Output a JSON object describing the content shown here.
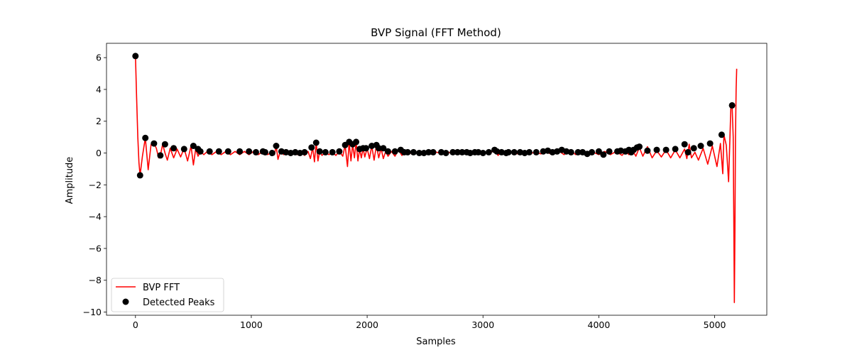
{
  "chart_data": {
    "type": "line",
    "title": "BVP Signal (FFT Method)",
    "xlabel": "Samples",
    "ylabel": "Amplitude",
    "xlim": [
      -250,
      5450
    ],
    "ylim": [
      -10.2,
      6.9
    ],
    "xticks": [
      0,
      1000,
      2000,
      3000,
      4000,
      5000
    ],
    "yticks": [
      -10,
      -8,
      -6,
      -4,
      -2,
      0,
      2,
      4,
      6
    ],
    "grid": false,
    "legend_position": "lower-left",
    "series": [
      {
        "name": "BVP FFT",
        "kind": "line",
        "color": "#ff0000",
        "x": [
          0,
          10,
          20,
          30,
          40,
          60,
          85,
          110,
          135,
          160,
          180,
          200,
          215,
          235,
          255,
          275,
          300,
          330,
          360,
          390,
          420,
          450,
          480,
          500,
          520,
          540,
          560,
          590,
          620,
          660,
          700,
          740,
          780,
          820,
          860,
          900,
          940,
          980,
          1020,
          1060,
          1100,
          1140,
          1180,
          1200,
          1215,
          1230,
          1250,
          1280,
          1310,
          1340,
          1370,
          1400,
          1430,
          1460,
          1490,
          1510,
          1530,
          1545,
          1560,
          1575,
          1590,
          1610,
          1640,
          1670,
          1700,
          1730,
          1760,
          1790,
          1810,
          1830,
          1845,
          1860,
          1875,
          1890,
          1905,
          1920,
          1935,
          1950,
          1965,
          1980,
          2000,
          2020,
          2040,
          2060,
          2080,
          2100,
          2120,
          2140,
          2160,
          2180,
          2210,
          2240,
          2270,
          2300,
          2330,
          2360,
          2400,
          2450,
          2500,
          2550,
          2600,
          2650,
          2700,
          2750,
          2800,
          2850,
          2900,
          2950,
          3000,
          3050,
          3100,
          3130,
          3160,
          3200,
          3250,
          3300,
          3350,
          3400,
          3450,
          3500,
          3550,
          3600,
          3650,
          3700,
          3750,
          3800,
          3850,
          3900,
          3950,
          4000,
          4050,
          4100,
          4150,
          4200,
          4230,
          4260,
          4290,
          4320,
          4350,
          4380,
          4420,
          4460,
          4500,
          4540,
          4580,
          4620,
          4660,
          4700,
          4740,
          4760,
          4780,
          4800,
          4830,
          4860,
          4900,
          4940,
          4980,
          5020,
          5050,
          5070,
          5080,
          5100,
          5120,
          5140,
          5150,
          5160,
          5165,
          5170,
          5175,
          5180,
          5185,
          5190
        ],
        "y": [
          6.1,
          3.5,
          1.0,
          -0.6,
          -1.4,
          -0.2,
          0.95,
          -1.05,
          0.55,
          0.6,
          0.3,
          -0.3,
          -0.15,
          0.55,
          0.0,
          -0.45,
          0.3,
          -0.3,
          0.25,
          -0.25,
          0.3,
          -0.5,
          0.45,
          -0.75,
          0.25,
          -0.2,
          0.1,
          -0.1,
          0.1,
          -0.1,
          0.1,
          -0.1,
          0.1,
          -0.1,
          0.1,
          -0.1,
          0.1,
          -0.1,
          0.1,
          -0.1,
          0.1,
          -0.1,
          0.05,
          -0.1,
          0.45,
          -0.4,
          0.1,
          -0.1,
          0.05,
          -0.1,
          0.05,
          -0.1,
          0.05,
          -0.15,
          0.1,
          -0.35,
          0.35,
          -0.55,
          0.65,
          -0.5,
          0.1,
          -0.15,
          0.05,
          -0.1,
          0.05,
          -0.15,
          0.1,
          -0.2,
          0.5,
          -0.85,
          0.7,
          -0.5,
          0.55,
          -0.3,
          0.7,
          -0.5,
          0.25,
          -0.3,
          0.3,
          -0.25,
          0.3,
          -0.35,
          0.45,
          -0.45,
          0.5,
          -0.3,
          0.3,
          -0.35,
          0.1,
          -0.2,
          0.1,
          -0.2,
          0.2,
          -0.15,
          0.05,
          -0.05,
          0.05,
          -0.05,
          0.05,
          -0.05,
          0.05,
          -0.05,
          0.05,
          -0.05,
          0.05,
          -0.05,
          0.05,
          -0.05,
          0.05,
          -0.05,
          0.2,
          -0.15,
          0.1,
          -0.05,
          0.05,
          -0.05,
          0.05,
          -0.05,
          0.05,
          -0.05,
          0.05,
          -0.1,
          0.15,
          -0.1,
          0.2,
          -0.1,
          0.1,
          -0.05,
          0.05,
          -0.1,
          0.1,
          -0.1,
          0.1,
          -0.15,
          0.1,
          -0.1,
          0.2,
          -0.2,
          0.35,
          -0.2,
          0.4,
          -0.3,
          0.15,
          -0.25,
          0.2,
          -0.3,
          0.2,
          -0.3,
          0.25,
          -0.35,
          0.55,
          -0.3,
          0.05,
          -0.45,
          0.3,
          -0.7,
          0.45,
          -0.85,
          0.6,
          -1.3,
          1.15,
          0.5,
          -1.8,
          2.9,
          3.0,
          1.0,
          -4.0,
          -9.4,
          -5.0,
          1.0,
          4.0,
          5.3
        ]
      },
      {
        "name": "Detected Peaks",
        "kind": "scatter",
        "color": "#000000",
        "x": [
          0,
          40,
          85,
          160,
          215,
          255,
          330,
          420,
          500,
          540,
          560,
          640,
          720,
          800,
          900,
          980,
          1040,
          1100,
          1120,
          1180,
          1215,
          1260,
          1300,
          1340,
          1380,
          1420,
          1460,
          1520,
          1560,
          1590,
          1640,
          1700,
          1760,
          1810,
          1845,
          1875,
          1905,
          1935,
          1965,
          1990,
          2040,
          2080,
          2100,
          2140,
          2180,
          2240,
          2290,
          2320,
          2350,
          2400,
          2450,
          2490,
          2530,
          2570,
          2640,
          2680,
          2740,
          2780,
          2820,
          2860,
          2890,
          2930,
          2960,
          3000,
          3050,
          3100,
          3120,
          3160,
          3200,
          3220,
          3270,
          3320,
          3360,
          3400,
          3460,
          3520,
          3560,
          3600,
          3640,
          3680,
          3720,
          3760,
          3820,
          3860,
          3900,
          3940,
          4000,
          4040,
          4090,
          4160,
          4190,
          4230,
          4260,
          4280,
          4300,
          4330,
          4350,
          4420,
          4500,
          4580,
          4660,
          4740,
          4770,
          4820,
          4880,
          4960,
          5060,
          5150
        ],
        "y": [
          6.1,
          -1.4,
          0.95,
          0.6,
          -0.15,
          0.55,
          0.3,
          0.25,
          0.45,
          0.25,
          0.1,
          0.1,
          0.1,
          0.1,
          0.1,
          0.1,
          0.05,
          0.1,
          0.05,
          0.0,
          0.45,
          0.1,
          0.05,
          0.0,
          0.05,
          0.0,
          0.05,
          0.35,
          0.65,
          0.1,
          0.05,
          0.05,
          0.1,
          0.5,
          0.7,
          0.55,
          0.7,
          0.25,
          0.3,
          0.3,
          0.45,
          0.5,
          0.3,
          0.3,
          0.1,
          0.1,
          0.2,
          0.05,
          0.05,
          0.05,
          0.0,
          0.0,
          0.05,
          0.05,
          0.05,
          0.0,
          0.05,
          0.05,
          0.05,
          0.05,
          0.0,
          0.05,
          0.05,
          0.0,
          0.05,
          0.2,
          0.1,
          0.05,
          0.0,
          0.05,
          0.05,
          0.05,
          0.0,
          0.05,
          0.05,
          0.1,
          0.15,
          0.05,
          0.1,
          0.2,
          0.1,
          0.05,
          0.05,
          0.05,
          -0.05,
          0.05,
          0.1,
          -0.1,
          0.1,
          0.1,
          0.15,
          0.1,
          0.2,
          0.05,
          0.2,
          0.35,
          0.4,
          0.15,
          0.2,
          0.2,
          0.25,
          0.55,
          0.05,
          0.3,
          0.45,
          0.6,
          1.15,
          3.0
        ]
      }
    ]
  }
}
